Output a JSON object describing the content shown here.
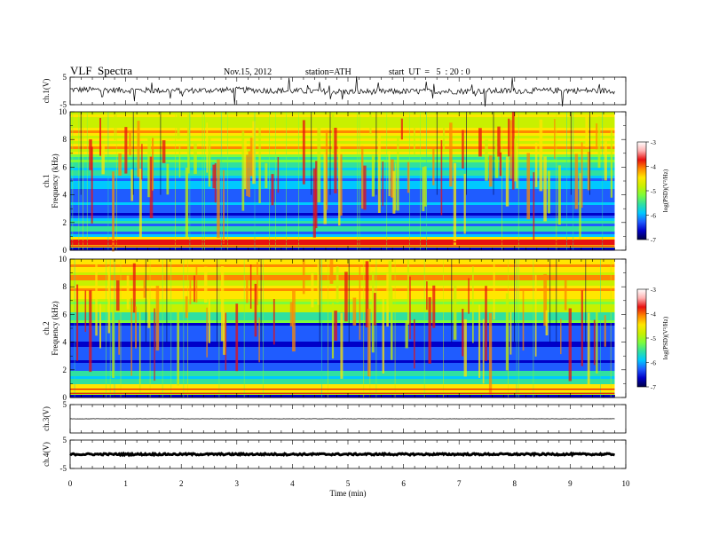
{
  "header": {
    "title": "VLF  Spectra",
    "date": "Nov.15, 2012",
    "station": "station=ATH",
    "start": "start  UT  =   5  : 20 : 0"
  },
  "colors": {
    "axis": "#000000",
    "spectrogram_colormap": [
      "#000044",
      "#0000c8",
      "#1f5cff",
      "#00c8ff",
      "#30e0a0",
      "#7cfc3c",
      "#c8f000",
      "#ffe600",
      "#ff8800",
      "#e81010",
      "#ffb0b0",
      "#ffffff"
    ]
  },
  "chart_data": [
    {
      "type": "line",
      "id": "ch1-waveform",
      "ylabel": "ch.1(V)",
      "ylim": [
        -5,
        5
      ],
      "yticks": [
        "5",
        "-5"
      ],
      "x": [
        0,
        1,
        2,
        3,
        4,
        5,
        6,
        7,
        8,
        9,
        9.8
      ],
      "y": [
        0.5,
        0.3,
        0.1,
        0.4,
        0.0,
        -0.3,
        -0.2,
        -0.1,
        0.0,
        0.2,
        0.0
      ],
      "note_range": "approx -1.5 to 1.5 V fluctuation"
    },
    {
      "type": "heatmap",
      "id": "ch1-spectrogram",
      "ylabel": "ch.1 Frequency (kHz)",
      "ylim": [
        0,
        10
      ],
      "yticks": [
        "0",
        "2",
        "4",
        "6",
        "8",
        "10"
      ],
      "xlim": [
        0,
        9.8
      ],
      "colorbar": {
        "label": "log(PSD)(V²/Hz)",
        "ticks": [
          "-3",
          "-4",
          "-5",
          "-6",
          "-7"
        ],
        "range": [
          -7,
          -3
        ]
      }
    },
    {
      "type": "heatmap",
      "id": "ch2-spectrogram",
      "ylabel": "ch.2 Frequency (kHz)",
      "ylim": [
        0,
        10
      ],
      "yticks": [
        "0",
        "2",
        "4",
        "6",
        "8",
        "10"
      ],
      "xlim": [
        0,
        9.8
      ],
      "colorbar": {
        "label": "log(PSD)(V²/Hz)",
        "ticks": [
          "-3",
          "-4",
          "-5",
          "-6",
          "-7"
        ],
        "range": [
          -7,
          -3
        ]
      }
    },
    {
      "type": "line",
      "id": "ch3-waveform",
      "ylabel": "ch.3(V)",
      "ylim": [
        -5,
        5
      ],
      "yticks": [
        "5"
      ],
      "x": [
        0,
        9.8
      ],
      "y": [
        0.0,
        0.0
      ]
    },
    {
      "type": "line",
      "id": "ch4-waveform",
      "ylabel": "ch.4(V)",
      "ylim": [
        -5,
        5
      ],
      "yticks": [
        "5",
        "-5"
      ],
      "x": [
        0,
        9.8
      ],
      "y": [
        0.0,
        0.0
      ]
    }
  ],
  "xaxis": {
    "label": "Time  (min)",
    "ticks": [
      "0",
      "1",
      "2",
      "3",
      "4",
      "5",
      "6",
      "7",
      "8",
      "9",
      "10"
    ],
    "xlim": [
      0,
      10
    ]
  }
}
